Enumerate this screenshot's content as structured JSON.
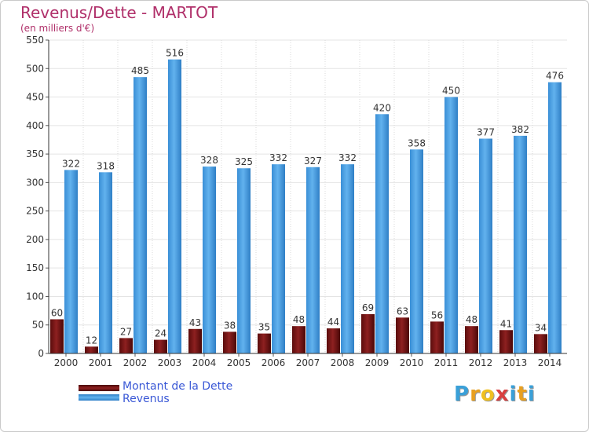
{
  "title": "Revenus/Dette - MARTOT",
  "subtitle": "(en milliers d'€)",
  "legend": {
    "items": [
      {
        "label": "Montant de la Dette",
        "color": "#7a1515"
      },
      {
        "label": "Revenus",
        "color": "#4c9fe0"
      }
    ]
  },
  "brand": {
    "letters": [
      "P",
      "r",
      "o",
      "x",
      "i",
      "t",
      "i"
    ],
    "colors": [
      "#3aa0d8",
      "#e8a020",
      "#f0c020",
      "#d84040",
      "#3aa0d8",
      "#e8a020",
      "#3aa0d8"
    ]
  },
  "chart_data": {
    "type": "bar",
    "title": "Revenus/Dette - MARTOT",
    "subtitle": "(en milliers d'€)",
    "categories": [
      "2000",
      "2001",
      "2002",
      "2003",
      "2004",
      "2005",
      "2006",
      "2007",
      "2008",
      "2009",
      "2010",
      "2011",
      "2012",
      "2013",
      "2014"
    ],
    "series": [
      {
        "name": "Montant de la Dette",
        "color": "#7a1515",
        "values": [
          60,
          12,
          27,
          24,
          43,
          38,
          35,
          48,
          44,
          69,
          63,
          56,
          48,
          41,
          34
        ]
      },
      {
        "name": "Revenus",
        "color": "#4c9fe0",
        "values": [
          322,
          318,
          485,
          516,
          328,
          325,
          332,
          327,
          332,
          420,
          358,
          450,
          377,
          382,
          476
        ]
      }
    ],
    "ylim": [
      0,
      550
    ],
    "yticks": [
      0,
      50,
      100,
      150,
      200,
      250,
      300,
      350,
      400,
      450,
      500,
      550
    ],
    "grid": true,
    "legend_position": "bottom-left"
  }
}
